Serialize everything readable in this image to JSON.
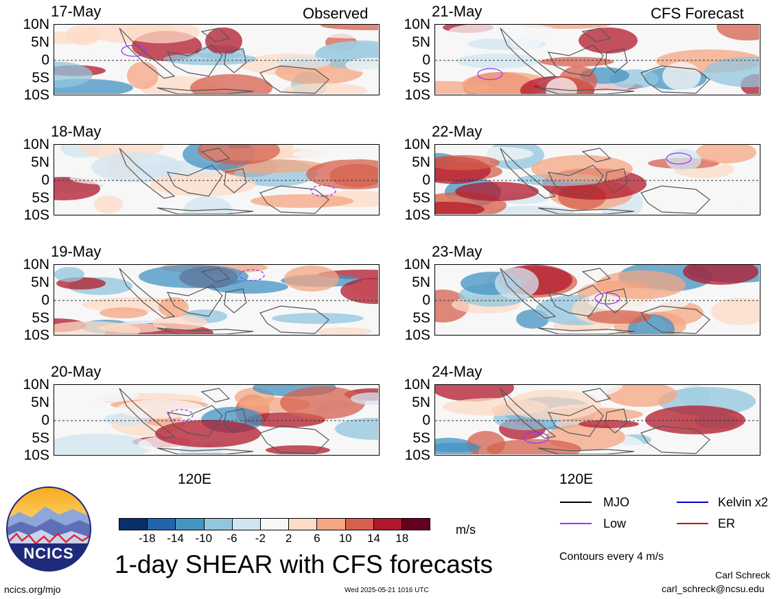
{
  "columns": {
    "left_title": "Observed",
    "right_title": "CFS Forecast"
  },
  "panels": [
    {
      "date": "17-May"
    },
    {
      "date": "18-May"
    },
    {
      "date": "19-May"
    },
    {
      "date": "20-May"
    },
    {
      "date": "21-May"
    },
    {
      "date": "22-May"
    },
    {
      "date": "23-May"
    },
    {
      "date": "24-May"
    }
  ],
  "y_labels": [
    "10N",
    "5N",
    "0",
    "5S",
    "10S"
  ],
  "x_label": "120E",
  "colorbar": {
    "unit": "m/s",
    "ticks": [
      "-18",
      "-14",
      "-10",
      "-6",
      "-2",
      "2",
      "6",
      "10",
      "14",
      "18"
    ],
    "colors": [
      "#08306b",
      "#2166ac",
      "#4393c3",
      "#92c5de",
      "#d1e5f0",
      "#f7f7f7",
      "#fddbc7",
      "#f4a582",
      "#d6604d",
      "#b2182b",
      "#67001f"
    ]
  },
  "legend": {
    "mjo": {
      "label": "MJO",
      "color": "#000000"
    },
    "kelvin": {
      "label": "Kelvin x2",
      "color": "#0000cc"
    },
    "low": {
      "label": "Low",
      "color": "#9933ff"
    },
    "er": {
      "label": "ER",
      "color": "#cc0000"
    },
    "contours_note": "Contours every 4 m/s"
  },
  "title": "1-day SHEAR with CFS forecasts",
  "logo_text": "NCICS",
  "footer": {
    "url": "ncics.org/mjo",
    "timestamp": "Wed 2025-05-21 1016 UTC",
    "author": "Carl Schreck",
    "email": "carl_schreck@ncsu.edu"
  }
}
